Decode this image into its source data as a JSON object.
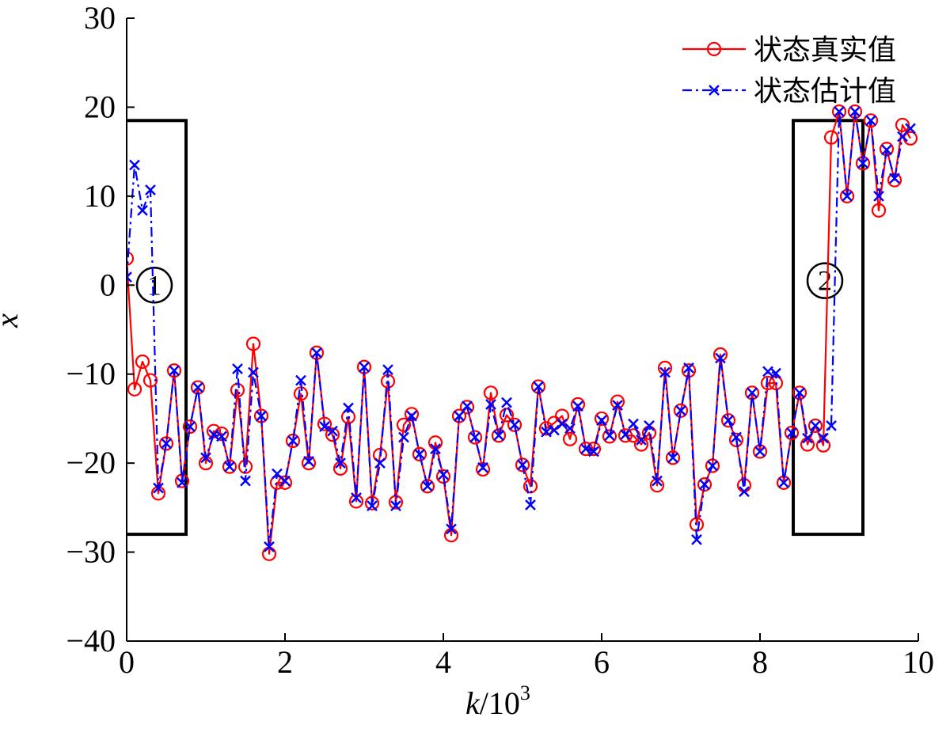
{
  "chart_data": {
    "type": "line",
    "xlabel": "k",
    "xlabel_unit": "/10",
    "xlabel_exp": "3",
    "ylabel": "x",
    "xlim": [
      0,
      10
    ],
    "ylim": [
      -40,
      30
    ],
    "xticks": [
      0,
      2,
      4,
      6,
      8,
      10
    ],
    "yticks": [
      -40,
      -30,
      -20,
      -10,
      0,
      10,
      20,
      30
    ],
    "xtick_labels": [
      "0",
      "2",
      "4",
      "6",
      "8",
      "10"
    ],
    "ytick_labels": [
      "−40",
      "−30",
      "−20",
      "−10",
      "0",
      "10",
      "20",
      "30"
    ],
    "grid": false,
    "legend_position": "top-right",
    "series": [
      {
        "name": "状态真实值",
        "color": "#ff0000",
        "line_style": "solid",
        "marker": "circle",
        "x": [
          0,
          0.1,
          0.2,
          0.3,
          0.4,
          0.5,
          0.6,
          0.7,
          0.8,
          0.9,
          1.0,
          1.1,
          1.2,
          1.3,
          1.4,
          1.5,
          1.6,
          1.7,
          1.8,
          1.9,
          2.0,
          2.1,
          2.2,
          2.3,
          2.4,
          2.5,
          2.6,
          2.7,
          2.8,
          2.9,
          3.0,
          3.1,
          3.2,
          3.3,
          3.4,
          3.5,
          3.6,
          3.7,
          3.8,
          3.9,
          4.0,
          4.1,
          4.2,
          4.3,
          4.4,
          4.5,
          4.6,
          4.7,
          4.8,
          4.9,
          5.0,
          5.1,
          5.2,
          5.3,
          5.4,
          5.5,
          5.6,
          5.7,
          5.8,
          5.9,
          6.0,
          6.1,
          6.2,
          6.3,
          6.4,
          6.5,
          6.6,
          6.7,
          6.8,
          6.9,
          7.0,
          7.1,
          7.2,
          7.3,
          7.4,
          7.5,
          7.6,
          7.7,
          7.8,
          7.9,
          8.0,
          8.1,
          8.2,
          8.3,
          8.4,
          8.5,
          8.6,
          8.7,
          8.8,
          8.9,
          9.0,
          9.1,
          9.2,
          9.3,
          9.4,
          9.5,
          9.6,
          9.7,
          9.8,
          9.9
        ],
        "values": [
          3.0,
          -11.7,
          -8.6,
          -10.7,
          -23.4,
          -17.8,
          -9.6,
          -22.0,
          -15.9,
          -11.5,
          -20.0,
          -16.4,
          -16.7,
          -20.4,
          -11.8,
          -20.4,
          -6.6,
          -14.7,
          -30.2,
          -22.2,
          -22.2,
          -17.5,
          -12.2,
          -20.0,
          -7.6,
          -15.6,
          -16.8,
          -20.6,
          -14.8,
          -24.3,
          -9.2,
          -24.5,
          -19.1,
          -10.8,
          -24.4,
          -15.7,
          -14.5,
          -19.0,
          -22.6,
          -17.7,
          -21.5,
          -28.1,
          -14.7,
          -13.7,
          -17.1,
          -20.7,
          -12.1,
          -16.9,
          -14.6,
          -15.7,
          -20.2,
          -22.6,
          -11.4,
          -16.1,
          -15.5,
          -14.7,
          -17.3,
          -13.4,
          -18.4,
          -18.4,
          -15.0,
          -17.0,
          -13.1,
          -16.9,
          -16.9,
          -17.9,
          -16.6,
          -22.5,
          -9.3,
          -19.4,
          -14.1,
          -9.6,
          -26.9,
          -22.4,
          -20.3,
          -7.8,
          -15.2,
          -17.4,
          -22.5,
          -12.1,
          -18.7,
          -11.0,
          -11.0,
          -22.2,
          -16.6,
          -12.1,
          -17.9,
          -15.8,
          -18.0,
          16.6,
          19.5,
          10.0,
          19.5,
          13.7,
          18.5,
          8.4,
          15.3,
          11.8,
          18.0,
          16.5
        ]
      },
      {
        "name": "状态估计值",
        "color": "#0000ff",
        "line_style": "dash-dot",
        "marker": "x",
        "x": [
          0,
          0.1,
          0.2,
          0.3,
          0.4,
          0.5,
          0.6,
          0.7,
          0.8,
          0.9,
          1.0,
          1.1,
          1.2,
          1.3,
          1.4,
          1.5,
          1.6,
          1.7,
          1.8,
          1.9,
          2.0,
          2.1,
          2.2,
          2.3,
          2.4,
          2.5,
          2.6,
          2.7,
          2.8,
          2.9,
          3.0,
          3.1,
          3.2,
          3.3,
          3.4,
          3.5,
          3.6,
          3.7,
          3.8,
          3.9,
          4.0,
          4.1,
          4.2,
          4.3,
          4.4,
          4.5,
          4.6,
          4.7,
          4.8,
          4.9,
          5.0,
          5.1,
          5.2,
          5.3,
          5.4,
          5.5,
          5.6,
          5.7,
          5.8,
          5.9,
          6.0,
          6.1,
          6.2,
          6.3,
          6.4,
          6.5,
          6.6,
          6.7,
          6.8,
          6.9,
          7.0,
          7.1,
          7.2,
          7.3,
          7.4,
          7.5,
          7.6,
          7.7,
          7.8,
          7.9,
          8.0,
          8.1,
          8.2,
          8.3,
          8.4,
          8.5,
          8.6,
          8.7,
          8.8,
          8.9,
          9.0,
          9.1,
          9.2,
          9.3,
          9.4,
          9.5,
          9.6,
          9.7,
          9.8,
          9.9
        ],
        "values": [
          0.9,
          13.5,
          8.4,
          10.7,
          -22.8,
          -17.8,
          -9.6,
          -22.2,
          -15.9,
          -11.5,
          -19.4,
          -16.8,
          -17.0,
          -20.4,
          -9.4,
          -22.0,
          -9.8,
          -14.7,
          -29.4,
          -21.2,
          -22.0,
          -17.5,
          -10.7,
          -19.8,
          -7.6,
          -15.9,
          -16.4,
          -20.0,
          -13.8,
          -23.9,
          -9.2,
          -24.8,
          -20.0,
          -9.5,
          -24.8,
          -17.1,
          -14.7,
          -19.0,
          -22.6,
          -18.4,
          -21.3,
          -27.4,
          -14.7,
          -13.6,
          -17.1,
          -20.5,
          -13.4,
          -16.9,
          -13.2,
          -15.7,
          -20.2,
          -24.7,
          -11.4,
          -16.5,
          -16.3,
          -15.6,
          -16.1,
          -13.6,
          -18.4,
          -18.7,
          -15.2,
          -16.9,
          -13.5,
          -16.8,
          -15.6,
          -17.4,
          -15.8,
          -22.0,
          -9.8,
          -19.4,
          -14.1,
          -9.3,
          -28.6,
          -22.4,
          -20.3,
          -8.2,
          -15.2,
          -17.1,
          -23.2,
          -12.1,
          -18.7,
          -9.7,
          -9.9,
          -22.2,
          -16.6,
          -12.1,
          -17.2,
          -15.8,
          -17.2,
          -15.8,
          19.5,
          10.0,
          19.5,
          13.7,
          18.5,
          10.0,
          15.2,
          12.0,
          16.7,
          17.6
        ]
      }
    ],
    "annotations": [
      {
        "label": "1",
        "box_x": [
          -0.05,
          0.75
        ],
        "box_y": [
          -28,
          18.5
        ],
        "label_xy": [
          0.35,
          0
        ]
      },
      {
        "label": "2",
        "box_x": [
          8.42,
          9.3
        ],
        "box_y": [
          -28,
          18.5
        ],
        "label_xy": [
          8.82,
          0.5
        ]
      }
    ]
  }
}
